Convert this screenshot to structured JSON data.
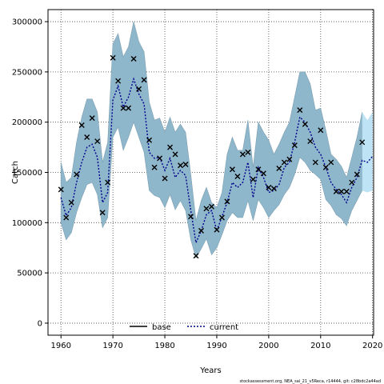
{
  "chart_data": {
    "type": "line",
    "xlabel": "Years",
    "ylabel": "Catch",
    "xlim": [
      1957.5,
      2020.2
    ],
    "ylim": [
      -12000,
      312000
    ],
    "xticks": [
      1960,
      1970,
      1980,
      1990,
      2000,
      2010,
      2020
    ],
    "yticks": [
      0,
      50000,
      100000,
      150000,
      200000,
      250000,
      300000
    ],
    "grid": true,
    "legend": {
      "position": "bottom-center",
      "entries": [
        "base",
        "current"
      ]
    },
    "footer": "stockassessment.org, NEA_sai_21_v5Reca, r14444, git: c28bdc2a44ad",
    "colors": {
      "band": "#8fb7cc",
      "band_edge": "#7d9fb1",
      "band_forecast": "#bde3f5",
      "current": "#00008b",
      "base": "#000000",
      "grid": "#444444"
    },
    "series": [
      {
        "name": "current",
        "kind": "estimate",
        "x": [
          1960,
          1961,
          1962,
          1963,
          1964,
          1965,
          1966,
          1967,
          1968,
          1969,
          1970,
          1971,
          1972,
          1973,
          1974,
          1975,
          1976,
          1977,
          1978,
          1979,
          1980,
          1981,
          1982,
          1983,
          1984,
          1985,
          1986,
          1987,
          1988,
          1989,
          1990,
          1991,
          1992,
          1993,
          1994,
          1995,
          1996,
          1997,
          1998,
          1999,
          2000,
          2001,
          2002,
          2003,
          2004,
          2005,
          2006,
          2007,
          2008,
          2009,
          2010,
          2011,
          2012,
          2013,
          2014,
          2015,
          2016,
          2017,
          2018,
          2019,
          2020
        ],
        "y": [
          125000,
          107000,
          115000,
          140000,
          160000,
          175000,
          178000,
          165000,
          120000,
          130000,
          222000,
          236000,
          215000,
          225000,
          243000,
          228000,
          218000,
          170000,
          164000,
          165000,
          152000,
          164000,
          145000,
          152000,
          147000,
          112000,
          80000,
          92000,
          108000,
          112000,
          92000,
          106000,
          120000,
          140000,
          135000,
          140000,
          160000,
          125000,
          155000,
          145000,
          130000,
          132000,
          138000,
          155000,
          160000,
          180000,
          205000,
          200000,
          190000,
          175000,
          168000,
          155000,
          140000,
          133000,
          128000,
          120000,
          135000,
          145000,
          162000,
          160000,
          166000
        ]
      },
      {
        "name": "upper",
        "kind": "ci",
        "y": [
          160000,
          140000,
          145000,
          180000,
          205000,
          223000,
          223000,
          210000,
          160000,
          180000,
          278000,
          288000,
          265000,
          275000,
          300000,
          280000,
          270000,
          220000,
          202000,
          204000,
          190000,
          205000,
          190000,
          198000,
          190000,
          148000,
          102000,
          122000,
          135000,
          120000,
          115000,
          130000,
          168000,
          185000,
          172000,
          172000,
          202000,
          155000,
          200000,
          190000,
          182000,
          168000,
          178000,
          190000,
          200000,
          225000,
          250000,
          250000,
          238000,
          212000,
          214000,
          192000,
          168000,
          163000,
          156000,
          145000,
          165000,
          185000,
          210000,
          202000,
          210000
        ]
      },
      {
        "name": "lower",
        "kind": "ci",
        "y": [
          100000,
          83000,
          90000,
          110000,
          125000,
          138000,
          140000,
          128000,
          95000,
          105000,
          185000,
          195000,
          172000,
          185000,
          200000,
          185000,
          170000,
          132000,
          127000,
          125000,
          115000,
          128000,
          113000,
          122000,
          112000,
          83000,
          65000,
          74000,
          84000,
          68000,
          75000,
          88000,
          102000,
          110000,
          105000,
          105000,
          122000,
          102000,
          123000,
          115000,
          105000,
          112000,
          118000,
          128000,
          135000,
          148000,
          165000,
          160000,
          152000,
          148000,
          143000,
          123000,
          117000,
          108000,
          104000,
          97000,
          112000,
          122000,
          132000,
          130000,
          132000
        ]
      },
      {
        "name": "observed",
        "kind": "points",
        "x": [
          1960,
          1961,
          1962,
          1963,
          1964,
          1965,
          1966,
          1967,
          1968,
          1969,
          1970,
          1971,
          1972,
          1973,
          1974,
          1975,
          1976,
          1977,
          1978,
          1979,
          1980,
          1981,
          1982,
          1983,
          1984,
          1985,
          1986,
          1987,
          1988,
          1989,
          1990,
          1991,
          1992,
          1993,
          1994,
          1995,
          1996,
          1997,
          1998,
          1999,
          2000,
          2001,
          2002,
          2003,
          2004,
          2005,
          2006,
          2007,
          2008,
          2009,
          2010,
          2011,
          2012,
          2013,
          2014,
          2015,
          2016,
          2017,
          2018
        ],
        "y": [
          133000,
          105000,
          120000,
          148000,
          197000,
          185000,
          204000,
          181000,
          110000,
          140000,
          264000,
          241000,
          214000,
          214000,
          263000,
          233000,
          242000,
          182000,
          155000,
          164000,
          144000,
          175000,
          168000,
          157000,
          158000,
          106000,
          67000,
          92000,
          114000,
          116000,
          93000,
          105000,
          121000,
          153000,
          146000,
          168000,
          170000,
          143000,
          153000,
          149000,
          135000,
          134000,
          154000,
          160000,
          163000,
          177000,
          212000,
          198000,
          181000,
          160000,
          192000,
          155000,
          160000,
          131000,
          131000,
          131000,
          140000,
          148000,
          180000
        ]
      }
    ],
    "forecast_start": 2018
  }
}
